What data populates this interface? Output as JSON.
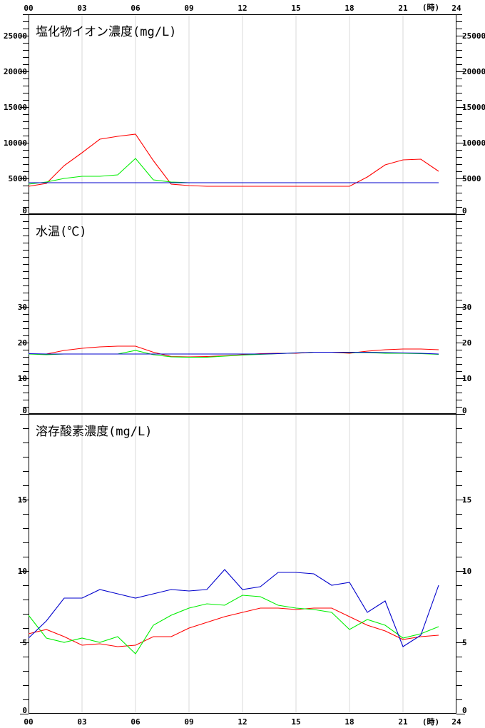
{
  "x_axis": {
    "ticks": [
      "00",
      "03",
      "06",
      "09",
      "12",
      "15",
      "18",
      "21",
      "24"
    ],
    "unit": "(時)"
  },
  "chart_data": [
    {
      "type": "line",
      "title": "塩化物イオン濃度(mg/L)",
      "x": [
        0,
        1,
        2,
        3,
        4,
        5,
        6,
        7,
        8,
        9,
        10,
        11,
        12,
        13,
        14,
        15,
        16,
        17,
        18,
        19,
        20,
        21,
        22,
        23
      ],
      "ylim": [
        0,
        28000
      ],
      "yticks": [
        "0",
        "5000",
        "10000",
        "15000",
        "20000",
        "25000"
      ],
      "ytick_values": [
        0,
        5000,
        10000,
        15000,
        20000,
        25000
      ],
      "minor_step": 1000,
      "grid": "vertical",
      "series": [
        {
          "color": "#ff0000",
          "values": [
            3900,
            4300,
            6800,
            8600,
            10500,
            10900,
            11200,
            7500,
            4200,
            4000,
            3900,
            3900,
            3900,
            3900,
            3900,
            3900,
            3900,
            3900,
            3900,
            5200,
            6900,
            7600,
            7700,
            6000
          ]
        },
        {
          "color": "#00ee00",
          "values": [
            4200,
            4500,
            5000,
            5300,
            5300,
            5500,
            7800,
            4800,
            4500,
            4400,
            4400,
            4400,
            4400,
            4400,
            4400,
            4400,
            4400,
            4400,
            4400,
            4400,
            4400,
            4400,
            4400,
            4400
          ]
        },
        {
          "color": "#0000cc",
          "values": [
            4400,
            4400,
            4400,
            4400,
            4400,
            4400,
            4400,
            4400,
            4400,
            4400,
            4400,
            4400,
            4400,
            4400,
            4400,
            4400,
            4400,
            4400,
            4400,
            4400,
            4400,
            4400,
            4400,
            4400
          ]
        }
      ]
    },
    {
      "type": "line",
      "title": "水温(℃)",
      "x": [
        0,
        1,
        2,
        3,
        4,
        5,
        6,
        7,
        8,
        9,
        10,
        11,
        12,
        13,
        14,
        15,
        16,
        17,
        18,
        19,
        20,
        21,
        22,
        23
      ],
      "ylim": [
        0,
        56
      ],
      "yticks": [
        "0",
        "10",
        "20",
        "30"
      ],
      "ytick_values": [
        0,
        10,
        20,
        30
      ],
      "minor_step": 2,
      "grid": "vertical",
      "series": [
        {
          "color": "#ff0000",
          "values": [
            16.8,
            16.8,
            17.8,
            18.4,
            18.8,
            19.0,
            19.0,
            17.3,
            16.1,
            16.0,
            16.1,
            16.3,
            16.6,
            16.9,
            17.0,
            17.0,
            17.3,
            17.3,
            17.0,
            17.6,
            18.0,
            18.2,
            18.2,
            18.0
          ]
        },
        {
          "color": "#00ee00",
          "values": [
            16.8,
            16.6,
            16.8,
            16.8,
            16.8,
            16.8,
            17.8,
            16.6,
            16.0,
            15.9,
            15.9,
            16.2,
            16.5,
            16.7,
            16.9,
            17.1,
            17.3,
            17.3,
            17.2,
            17.2,
            17.0,
            17.0,
            16.9,
            16.7
          ]
        },
        {
          "color": "#0000cc",
          "values": [
            16.9,
            16.8,
            16.8,
            16.8,
            16.8,
            16.8,
            16.8,
            16.8,
            16.8,
            16.8,
            16.8,
            16.8,
            16.8,
            16.8,
            16.9,
            17.1,
            17.3,
            17.3,
            17.3,
            17.3,
            17.2,
            17.1,
            17.0,
            16.8
          ]
        }
      ]
    },
    {
      "type": "line",
      "title": "溶存酸素濃度(mg/L)",
      "x": [
        0,
        1,
        2,
        3,
        4,
        5,
        6,
        7,
        8,
        9,
        10,
        11,
        12,
        13,
        14,
        15,
        16,
        17,
        18,
        19,
        20,
        21,
        22,
        23
      ],
      "ylim": [
        0,
        21
      ],
      "yticks": [
        "0",
        "5",
        "10",
        "15"
      ],
      "ytick_values": [
        0,
        5,
        10,
        15
      ],
      "minor_step": 1,
      "grid": "vertical",
      "series": [
        {
          "color": "#ff0000",
          "values": [
            5.6,
            5.9,
            5.4,
            4.8,
            4.9,
            4.7,
            4.8,
            5.4,
            5.4,
            6.0,
            6.4,
            6.8,
            7.1,
            7.4,
            7.4,
            7.3,
            7.4,
            7.4,
            6.8,
            6.2,
            5.8,
            5.2,
            5.4,
            5.5
          ]
        },
        {
          "color": "#00ee00",
          "values": [
            6.9,
            5.3,
            5.0,
            5.3,
            5.0,
            5.4,
            4.2,
            6.2,
            6.9,
            7.4,
            7.7,
            7.6,
            8.3,
            8.2,
            7.6,
            7.4,
            7.3,
            7.1,
            5.9,
            6.6,
            6.2,
            5.3,
            5.6,
            6.1
          ]
        },
        {
          "color": "#0000cc",
          "values": [
            5.3,
            6.5,
            8.1,
            8.1,
            8.7,
            8.4,
            8.1,
            8.4,
            8.7,
            8.6,
            8.7,
            10.1,
            8.7,
            8.9,
            9.9,
            9.9,
            9.8,
            9.0,
            9.2,
            7.1,
            7.9,
            4.7,
            5.5,
            9.0
          ]
        }
      ]
    }
  ]
}
